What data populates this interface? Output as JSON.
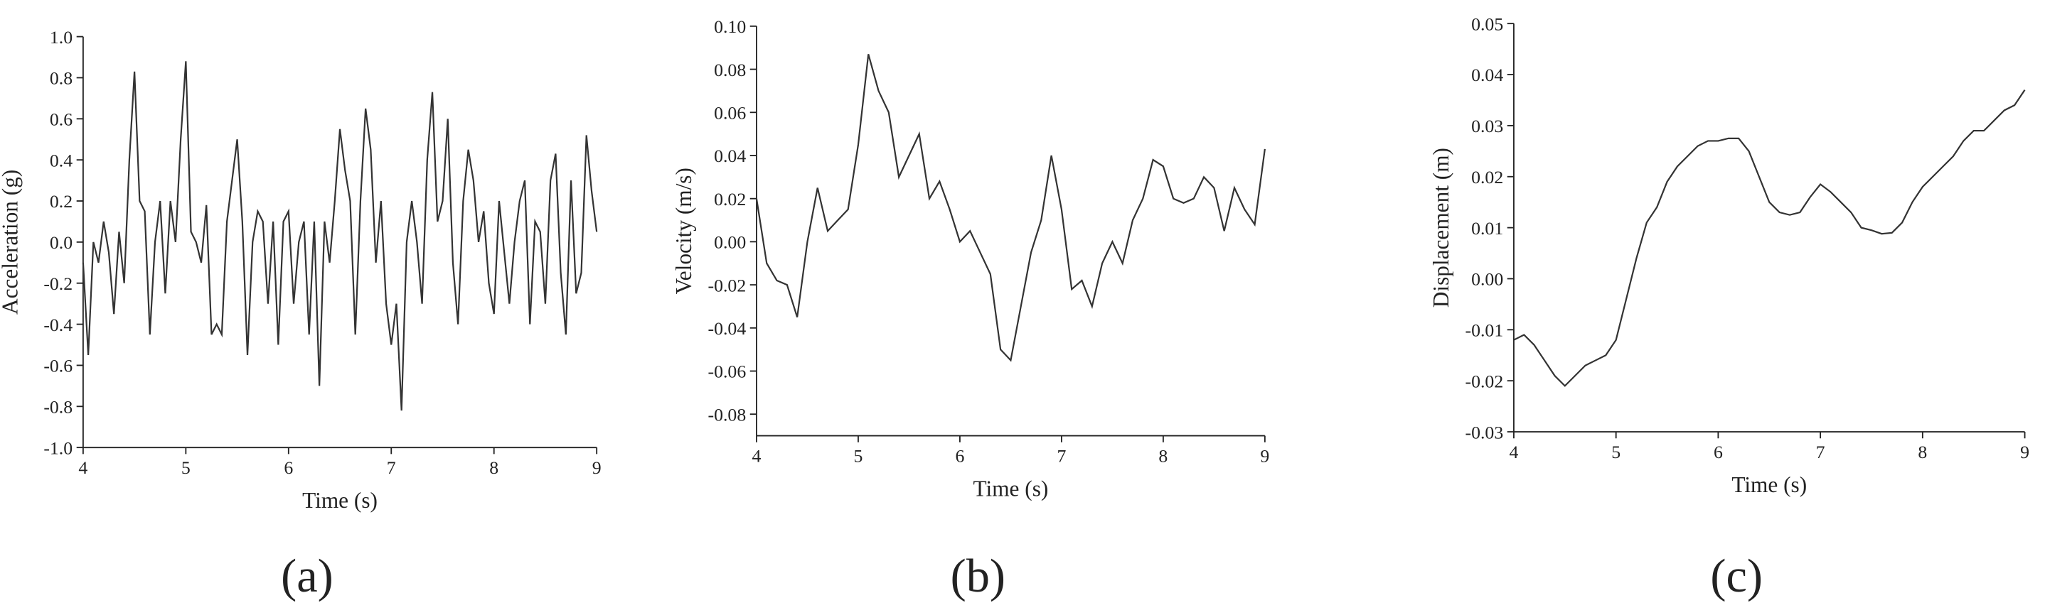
{
  "chart_data": [
    {
      "type": "line",
      "caption": "(a)",
      "xlabel": "Time (s)",
      "ylabel": "Acceleration (g)",
      "x": [
        4.0,
        4.05,
        4.1,
        4.15,
        4.2,
        4.25,
        4.3,
        4.35,
        4.4,
        4.45,
        4.5,
        4.55,
        4.6,
        4.65,
        4.7,
        4.75,
        4.8,
        4.85,
        4.9,
        4.95,
        5.0,
        5.05,
        5.1,
        5.15,
        5.2,
        5.25,
        5.3,
        5.35,
        5.4,
        5.45,
        5.5,
        5.55,
        5.6,
        5.65,
        5.7,
        5.75,
        5.8,
        5.85,
        5.9,
        5.95,
        6.0,
        6.05,
        6.1,
        6.15,
        6.2,
        6.25,
        6.3,
        6.35,
        6.4,
        6.45,
        6.5,
        6.55,
        6.6,
        6.65,
        6.7,
        6.75,
        6.8,
        6.85,
        6.9,
        6.95,
        7.0,
        7.05,
        7.1,
        7.15,
        7.2,
        7.25,
        7.3,
        7.35,
        7.4,
        7.45,
        7.5,
        7.55,
        7.6,
        7.65,
        7.7,
        7.75,
        7.8,
        7.85,
        7.9,
        7.95,
        8.0,
        8.05,
        8.1,
        8.15,
        8.2,
        8.25,
        8.3,
        8.35,
        8.4,
        8.45,
        8.5,
        8.55,
        8.6,
        8.65,
        8.7,
        8.75,
        8.8,
        8.85,
        8.9,
        8.95,
        9.0
      ],
      "series": [
        {
          "color": "#333333",
          "values": [
            -0.1,
            -0.55,
            0.0,
            -0.1,
            0.1,
            -0.05,
            -0.35,
            0.05,
            -0.2,
            0.4,
            0.83,
            0.2,
            0.15,
            -0.45,
            0.0,
            0.2,
            -0.25,
            0.2,
            0.0,
            0.5,
            0.88,
            0.05,
            0.0,
            -0.1,
            0.18,
            -0.45,
            -0.4,
            -0.45,
            0.1,
            0.3,
            0.5,
            0.1,
            -0.55,
            0.0,
            0.15,
            0.1,
            -0.3,
            0.1,
            -0.5,
            0.1,
            0.15,
            -0.3,
            0.0,
            0.1,
            -0.45,
            0.1,
            -0.7,
            0.1,
            -0.1,
            0.2,
            0.55,
            0.35,
            0.2,
            -0.45,
            0.2,
            0.65,
            0.45,
            -0.1,
            0.2,
            -0.3,
            -0.5,
            -0.3,
            -0.82,
            0.0,
            0.2,
            0.0,
            -0.3,
            0.4,
            0.73,
            0.1,
            0.2,
            0.6,
            -0.1,
            -0.4,
            0.2,
            0.45,
            0.3,
            0.0,
            0.15,
            -0.2,
            -0.35,
            0.2,
            -0.05,
            -0.3,
            0.0,
            0.2,
            0.3,
            -0.4,
            0.1,
            0.05,
            -0.3,
            0.3,
            0.43,
            -0.15,
            -0.45,
            0.3,
            -0.25,
            -0.15,
            0.52,
            0.25,
            0.05
          ]
        }
      ],
      "xlim": [
        4,
        9
      ],
      "xticks": [
        4,
        5,
        6,
        7,
        8,
        9
      ],
      "ylim": [
        -1,
        1
      ],
      "yticks": [
        {
          "value": 1,
          "label": "1.0"
        },
        0.8,
        0.6,
        0.4,
        0.2,
        {
          "value": 0,
          "label": "0.0"
        },
        -0.2,
        -0.4,
        -0.6,
        -0.8,
        {
          "value": -1,
          "label": "-1.0"
        }
      ]
    },
    {
      "type": "line",
      "caption": "(b)",
      "xlabel": "Time (s)",
      "ylabel": "Velocity (m/s)",
      "x": [
        4.0,
        4.1,
        4.2,
        4.3,
        4.4,
        4.5,
        4.6,
        4.7,
        4.8,
        4.9,
        5.0,
        5.1,
        5.2,
        5.3,
        5.4,
        5.5,
        5.6,
        5.7,
        5.8,
        5.9,
        6.0,
        6.1,
        6.2,
        6.3,
        6.4,
        6.5,
        6.6,
        6.7,
        6.8,
        6.9,
        7.0,
        7.1,
        7.2,
        7.3,
        7.4,
        7.5,
        7.6,
        7.7,
        7.8,
        7.9,
        8.0,
        8.1,
        8.2,
        8.3,
        8.4,
        8.5,
        8.6,
        8.7,
        8.8,
        8.9,
        9.0
      ],
      "series": [
        {
          "color": "#333333",
          "values": [
            0.02,
            -0.01,
            -0.018,
            -0.02,
            -0.035,
            0.0,
            0.025,
            0.005,
            0.01,
            0.015,
            0.045,
            0.087,
            0.07,
            0.06,
            0.03,
            0.04,
            0.05,
            0.02,
            0.028,
            0.015,
            0.0,
            0.005,
            -0.005,
            -0.015,
            -0.05,
            -0.055,
            -0.03,
            -0.005,
            0.01,
            0.04,
            0.015,
            -0.022,
            -0.018,
            -0.03,
            -0.01,
            0.0,
            -0.01,
            0.01,
            0.02,
            0.038,
            0.035,
            0.02,
            0.018,
            0.02,
            0.03,
            0.025,
            0.005,
            0.025,
            0.015,
            0.008,
            0.043
          ]
        }
      ],
      "xlim": [
        4,
        9
      ],
      "xticks": [
        4,
        5,
        6,
        7,
        8,
        9
      ],
      "ylim": [
        -0.09,
        0.1
      ],
      "yticks": [
        {
          "value": 0.1,
          "label": "0.10"
        },
        0.08,
        0.06,
        0.04,
        0.02,
        {
          "value": 0,
          "label": "0.00"
        },
        -0.02,
        -0.04,
        -0.06,
        -0.08
      ]
    },
    {
      "type": "line",
      "caption": "(c)",
      "xlabel": "Time (s)",
      "ylabel": "Displacement (m)",
      "x": [
        4.0,
        4.1,
        4.2,
        4.3,
        4.4,
        4.5,
        4.6,
        4.7,
        4.8,
        4.9,
        5.0,
        5.1,
        5.2,
        5.3,
        5.4,
        5.5,
        5.6,
        5.7,
        5.8,
        5.9,
        6.0,
        6.1,
        6.2,
        6.3,
        6.4,
        6.5,
        6.6,
        6.7,
        6.8,
        6.9,
        7.0,
        7.1,
        7.2,
        7.3,
        7.4,
        7.5,
        7.6,
        7.7,
        7.8,
        7.9,
        8.0,
        8.1,
        8.2,
        8.3,
        8.4,
        8.5,
        8.6,
        8.7,
        8.8,
        8.9,
        9.0
      ],
      "series": [
        {
          "color": "#333333",
          "values": [
            -0.012,
            -0.011,
            -0.013,
            -0.016,
            -0.019,
            -0.021,
            -0.019,
            -0.017,
            -0.016,
            -0.015,
            -0.012,
            -0.004,
            0.004,
            0.011,
            0.014,
            0.019,
            0.022,
            0.024,
            0.026,
            0.027,
            0.027,
            0.0275,
            0.0275,
            0.025,
            0.02,
            0.015,
            0.013,
            0.0125,
            0.013,
            0.016,
            0.0185,
            0.017,
            0.015,
            0.013,
            0.01,
            0.0095,
            0.0088,
            0.009,
            0.011,
            0.015,
            0.018,
            0.02,
            0.022,
            0.024,
            0.027,
            0.029,
            0.029,
            0.031,
            0.033,
            0.034,
            0.037
          ]
        }
      ],
      "xlim": [
        4,
        9
      ],
      "xticks": [
        4,
        5,
        6,
        7,
        8,
        9
      ],
      "ylim": [
        -0.03,
        0.05
      ],
      "yticks": [
        0.05,
        0.04,
        0.03,
        0.02,
        0.01,
        {
          "value": 0,
          "label": "0.00"
        },
        -0.01,
        -0.02,
        -0.03
      ]
    }
  ]
}
